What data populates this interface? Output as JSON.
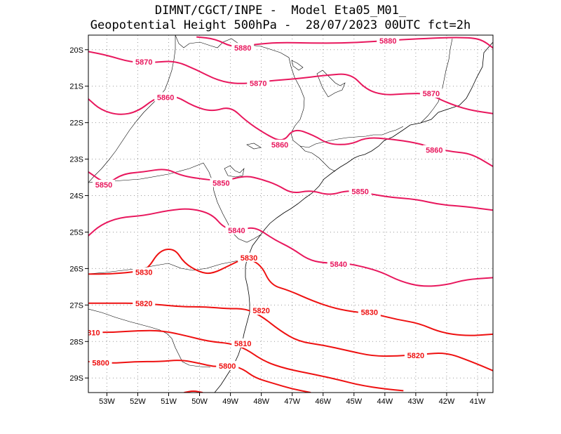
{
  "header": {
    "line1": "DIMNT/CGCT/INPE -  Model Eta05_M01_",
    "line2": "Geopotential Height 500hPa -  28/07/2023 00UTC fct=2h"
  },
  "map": {
    "lon_range": [
      -53.6,
      -40.5
    ],
    "lat_range": [
      -19.6,
      -29.4
    ],
    "lon_ticks": [
      "53W",
      "52W",
      "51W",
      "50W",
      "49W",
      "48W",
      "47W",
      "46W",
      "45W",
      "44W",
      "43W",
      "42W",
      "41W"
    ],
    "lat_ticks": [
      "20S",
      "21S",
      "22S",
      "23S",
      "24S",
      "25S",
      "26S",
      "27S",
      "28S",
      "29S"
    ]
  },
  "colors": {
    "contour_pink": "#e8175d",
    "contour_red": "#ee1111",
    "coast": "#000000",
    "grid": "#999999"
  },
  "contours": [
    {
      "value": "5880",
      "color": "#e8175d",
      "points": [
        [
          -50.1,
          -19.65
        ],
        [
          -49.5,
          -19.7
        ],
        [
          -48.9,
          -19.95
        ],
        [
          -48.2,
          -19.85
        ],
        [
          -47.4,
          -19.8
        ],
        [
          -46.4,
          -19.82
        ],
        [
          -45.4,
          -19.82
        ],
        [
          -44.4,
          -19.78
        ],
        [
          -43.4,
          -19.72
        ],
        [
          -42.4,
          -19.68
        ],
        [
          -41.5,
          -19.66
        ],
        [
          -40.9,
          -19.7
        ],
        [
          -40.5,
          -19.95
        ]
      ],
      "labels": [
        [
          -48.6,
          -19.95
        ],
        [
          -43.9,
          -19.75
        ]
      ]
    },
    {
      "value": "5870",
      "color": "#e8175d",
      "points": [
        [
          -53.6,
          -20.05
        ],
        [
          -53.0,
          -20.15
        ],
        [
          -52.2,
          -20.35
        ],
        [
          -51.5,
          -20.35
        ],
        [
          -50.8,
          -20.3
        ],
        [
          -50.1,
          -20.55
        ],
        [
          -49.4,
          -20.85
        ],
        [
          -48.7,
          -20.95
        ],
        [
          -47.7,
          -20.85
        ],
        [
          -46.9,
          -20.8
        ],
        [
          -45.9,
          -20.7
        ],
        [
          -45.1,
          -20.65
        ],
        [
          -44.6,
          -21.1
        ],
        [
          -44.0,
          -21.25
        ],
        [
          -43.3,
          -21.2
        ],
        [
          -42.6,
          -21.2
        ],
        [
          -42.0,
          -21.45
        ],
        [
          -41.3,
          -21.65
        ],
        [
          -40.5,
          -21.75
        ]
      ],
      "labels": [
        [
          -51.8,
          -20.33
        ],
        [
          -48.1,
          -20.92
        ],
        [
          -42.5,
          -21.2
        ]
      ]
    },
    {
      "value": "5860",
      "color": "#e8175d",
      "points": [
        [
          -53.6,
          -21.35
        ],
        [
          -53.2,
          -21.65
        ],
        [
          -52.6,
          -21.8
        ],
        [
          -52.0,
          -21.7
        ],
        [
          -51.4,
          -21.3
        ],
        [
          -50.8,
          -21.25
        ],
        [
          -50.2,
          -21.55
        ],
        [
          -49.6,
          -21.7
        ],
        [
          -49.0,
          -21.55
        ],
        [
          -48.5,
          -21.95
        ],
        [
          -47.9,
          -22.3
        ],
        [
          -47.3,
          -22.55
        ],
        [
          -46.95,
          -22.15
        ],
        [
          -46.3,
          -22.35
        ],
        [
          -45.8,
          -22.6
        ],
        [
          -45.1,
          -22.6
        ],
        [
          -44.6,
          -22.4
        ],
        [
          -43.8,
          -22.45
        ],
        [
          -43.0,
          -22.55
        ],
        [
          -42.4,
          -22.7
        ],
        [
          -41.8,
          -22.8
        ],
        [
          -41.2,
          -22.85
        ],
        [
          -40.5,
          -23.2
        ]
      ],
      "labels": [
        [
          -51.1,
          -21.3
        ],
        [
          -47.4,
          -22.6
        ],
        [
          -42.4,
          -22.75
        ]
      ]
    },
    {
      "value": "5850",
      "color": "#e8175d",
      "points": [
        [
          -53.6,
          -23.35
        ],
        [
          -53.0,
          -23.7
        ],
        [
          -52.5,
          -23.4
        ],
        [
          -51.8,
          -23.35
        ],
        [
          -51.1,
          -23.25
        ],
        [
          -50.6,
          -23.45
        ],
        [
          -49.9,
          -23.55
        ],
        [
          -49.2,
          -23.6
        ],
        [
          -48.5,
          -23.45
        ],
        [
          -48.0,
          -23.55
        ],
        [
          -47.5,
          -23.7
        ],
        [
          -47.0,
          -23.95
        ],
        [
          -46.4,
          -23.85
        ],
        [
          -45.8,
          -24.0
        ],
        [
          -45.2,
          -23.85
        ],
        [
          -44.5,
          -23.95
        ],
        [
          -43.8,
          -24.05
        ],
        [
          -43.0,
          -24.1
        ],
        [
          -42.2,
          -24.25
        ],
        [
          -41.4,
          -24.3
        ],
        [
          -40.5,
          -24.4
        ]
      ],
      "labels": [
        [
          -53.1,
          -23.7
        ],
        [
          -49.3,
          -23.65
        ],
        [
          -44.8,
          -23.88
        ]
      ]
    },
    {
      "value": "5840",
      "color": "#e8175d",
      "points": [
        [
          -53.6,
          -25.1
        ],
        [
          -53.2,
          -24.8
        ],
        [
          -52.6,
          -24.6
        ],
        [
          -51.8,
          -24.55
        ],
        [
          -51.0,
          -24.4
        ],
        [
          -50.3,
          -24.35
        ],
        [
          -49.6,
          -24.5
        ],
        [
          -49.2,
          -24.9
        ],
        [
          -48.7,
          -24.95
        ],
        [
          -48.2,
          -24.85
        ],
        [
          -47.6,
          -25.2
        ],
        [
          -47.0,
          -25.45
        ],
        [
          -46.5,
          -25.75
        ],
        [
          -46.0,
          -25.85
        ],
        [
          -45.3,
          -25.85
        ],
        [
          -44.7,
          -25.95
        ],
        [
          -44.1,
          -26.1
        ],
        [
          -43.5,
          -26.35
        ],
        [
          -42.8,
          -26.5
        ],
        [
          -42.0,
          -26.45
        ],
        [
          -41.4,
          -26.3
        ],
        [
          -40.5,
          -26.25
        ]
      ],
      "labels": [
        [
          -48.8,
          -24.95
        ],
        [
          -45.5,
          -25.88
        ]
      ]
    },
    {
      "value": "5830",
      "color": "#ee1111",
      "points": [
        [
          -53.6,
          -26.15
        ],
        [
          -52.9,
          -26.15
        ],
        [
          -52.2,
          -26.1
        ],
        [
          -51.7,
          -26.05
        ],
        [
          -51.3,
          -25.5
        ],
        [
          -50.8,
          -25.45
        ],
        [
          -50.5,
          -25.85
        ],
        [
          -50.0,
          -26.1
        ],
        [
          -49.6,
          -26.15
        ],
        [
          -49.0,
          -25.9
        ],
        [
          -48.5,
          -25.7
        ],
        [
          -48.0,
          -25.9
        ],
        [
          -47.7,
          -26.45
        ],
        [
          -47.1,
          -26.6
        ],
        [
          -46.3,
          -26.9
        ],
        [
          -45.6,
          -27.1
        ],
        [
          -44.9,
          -27.2
        ],
        [
          -44.3,
          -27.25
        ],
        [
          -43.6,
          -27.4
        ],
        [
          -42.9,
          -27.5
        ],
        [
          -42.2,
          -27.75
        ],
        [
          -41.4,
          -27.85
        ],
        [
          -40.5,
          -27.8
        ]
      ],
      "labels": [
        [
          -51.8,
          -26.1
        ],
        [
          -48.4,
          -25.7
        ],
        [
          -44.5,
          -27.2
        ]
      ]
    },
    {
      "value": "5820",
      "color": "#ee1111",
      "points": [
        [
          -53.6,
          -26.95
        ],
        [
          -52.8,
          -26.95
        ],
        [
          -52.0,
          -26.95
        ],
        [
          -51.2,
          -27.0
        ],
        [
          -50.5,
          -27.05
        ],
        [
          -49.8,
          -27.05
        ],
        [
          -49.1,
          -27.1
        ],
        [
          -48.5,
          -27.1
        ],
        [
          -48.0,
          -27.3
        ],
        [
          -47.4,
          -27.7
        ],
        [
          -46.8,
          -28.0
        ],
        [
          -46.0,
          -28.1
        ],
        [
          -45.2,
          -28.25
        ],
        [
          -44.4,
          -28.4
        ],
        [
          -43.6,
          -28.4
        ],
        [
          -42.8,
          -28.35
        ],
        [
          -42.0,
          -28.3
        ],
        [
          -41.2,
          -28.55
        ],
        [
          -40.5,
          -28.8
        ]
      ],
      "labels": [
        [
          -51.8,
          -26.95
        ],
        [
          -48.0,
          -27.15
        ],
        [
          -43.0,
          -28.38
        ]
      ]
    },
    {
      "value": "5810",
      "color": "#ee1111",
      "points": [
        [
          -53.6,
          -27.75
        ],
        [
          -52.8,
          -27.75
        ],
        [
          -52.0,
          -27.7
        ],
        [
          -51.2,
          -27.7
        ],
        [
          -50.4,
          -27.85
        ],
        [
          -49.7,
          -28.0
        ],
        [
          -49.0,
          -28.05
        ],
        [
          -48.5,
          -28.2
        ],
        [
          -47.9,
          -28.55
        ],
        [
          -47.2,
          -28.75
        ],
        [
          -46.3,
          -28.9
        ],
        [
          -45.5,
          -29.05
        ],
        [
          -44.8,
          -29.2
        ],
        [
          -44.0,
          -29.3
        ],
        [
          -43.4,
          -29.35
        ]
      ],
      "labels": [
        [
          -53.5,
          -27.75
        ],
        [
          -48.6,
          -28.05
        ]
      ]
    },
    {
      "value": "5800",
      "color": "#ee1111",
      "points": [
        [
          -53.6,
          -28.55
        ],
        [
          -52.9,
          -28.6
        ],
        [
          -52.1,
          -28.55
        ],
        [
          -51.3,
          -28.55
        ],
        [
          -50.6,
          -28.5
        ],
        [
          -50.0,
          -28.6
        ],
        [
          -49.5,
          -28.7
        ],
        [
          -49.0,
          -28.65
        ],
        [
          -48.6,
          -28.75
        ],
        [
          -48.2,
          -29.0
        ],
        [
          -47.6,
          -29.15
        ],
        [
          -47.0,
          -29.3
        ],
        [
          -46.4,
          -29.4
        ]
      ],
      "labels": [
        [
          -53.2,
          -28.58
        ],
        [
          -49.1,
          -28.67
        ]
      ]
    },
    {
      "value": "",
      "color": "#ee1111",
      "points": [
        [
          -50.5,
          -29.4
        ],
        [
          -50.2,
          -29.35
        ],
        [
          -49.9,
          -29.4
        ]
      ],
      "labels": []
    }
  ]
}
